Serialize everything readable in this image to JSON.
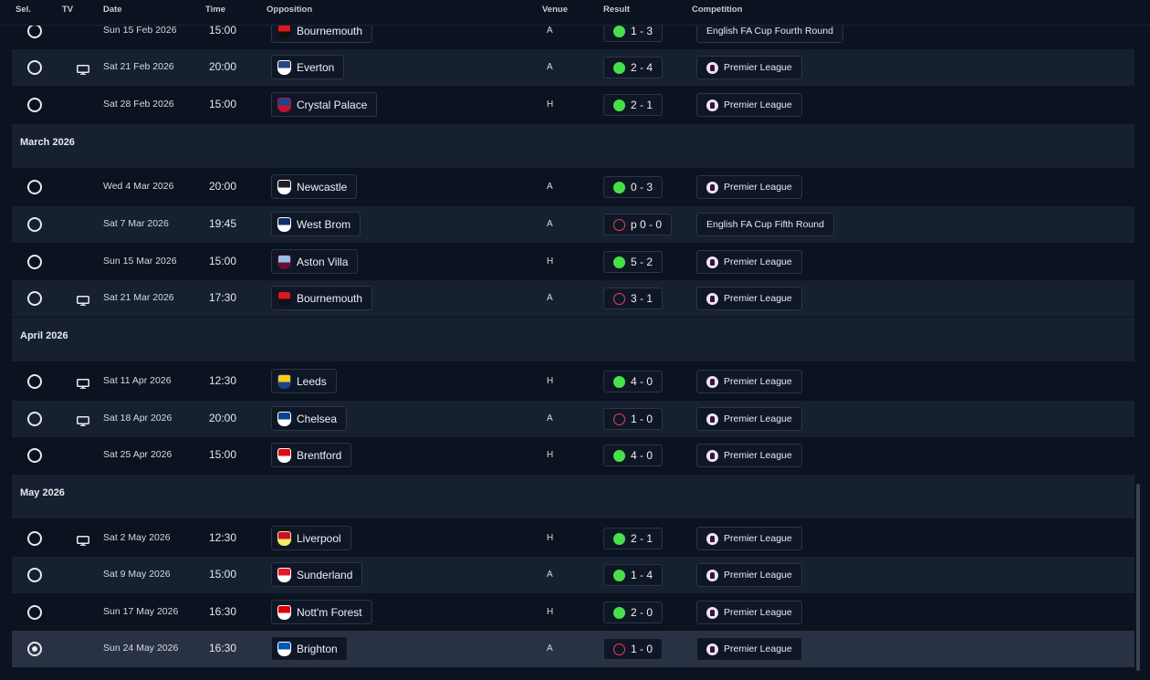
{
  "header": {
    "sel": "Sel.",
    "tv": "TV",
    "date": "Date",
    "time": "Time",
    "opposition": "Opposition",
    "venue": "Venue",
    "result": "Result",
    "competition": "Competition"
  },
  "colors": {
    "win": "#48e04a",
    "loss": "#e64552",
    "background": "#0b1220",
    "row_alt": "#162031",
    "row_selected": "#293244"
  },
  "months": [
    {
      "label": "March 2026"
    },
    {
      "label": "April 2026"
    },
    {
      "label": "May 2026"
    }
  ],
  "fixtures": [
    {
      "date": "Sun 15 Feb 2026",
      "time": "15:00",
      "opponent": "Bournemouth",
      "crest_icon": "bournemouth-crest-icon",
      "venue": "A",
      "outcome": "win",
      "score": "1 - 3",
      "competition": "English FA Cup Fourth Round",
      "pl": false,
      "tv": false,
      "selected": false
    },
    {
      "date": "Sat 21 Feb 2026",
      "time": "20:00",
      "opponent": "Everton",
      "crest_icon": "everton-crest-icon",
      "venue": "A",
      "outcome": "win",
      "score": "2 - 4",
      "competition": "Premier League",
      "pl": true,
      "tv": true,
      "selected": false
    },
    {
      "date": "Sat 28 Feb 2026",
      "time": "15:00",
      "opponent": "Crystal Palace",
      "crest_icon": "crystal-palace-crest-icon",
      "venue": "H",
      "outcome": "win",
      "score": "2 - 1",
      "competition": "Premier League",
      "pl": true,
      "tv": false,
      "selected": false
    },
    {
      "date": "Wed 4 Mar 2026",
      "time": "20:00",
      "opponent": "Newcastle",
      "crest_icon": "newcastle-crest-icon",
      "venue": "A",
      "outcome": "win",
      "score": "0 - 3",
      "competition": "Premier League",
      "pl": true,
      "tv": false,
      "selected": false
    },
    {
      "date": "Sat 7 Mar 2026",
      "time": "19:45",
      "opponent": "West Brom",
      "crest_icon": "west-brom-crest-icon",
      "venue": "A",
      "outcome": "loss",
      "score": "p 0 - 0",
      "competition": "English FA Cup Fifth Round",
      "pl": false,
      "tv": false,
      "selected": false
    },
    {
      "date": "Sun 15 Mar 2026",
      "time": "15:00",
      "opponent": "Aston Villa",
      "crest_icon": "aston-villa-crest-icon",
      "venue": "H",
      "outcome": "win",
      "score": "5 - 2",
      "competition": "Premier League",
      "pl": true,
      "tv": false,
      "selected": false
    },
    {
      "date": "Sat 21 Mar 2026",
      "time": "17:30",
      "opponent": "Bournemouth",
      "crest_icon": "bournemouth-crest-icon",
      "venue": "A",
      "outcome": "loss",
      "score": "3 - 1",
      "competition": "Premier League",
      "pl": true,
      "tv": true,
      "selected": false
    },
    {
      "date": "Sat 11 Apr 2026",
      "time": "12:30",
      "opponent": "Leeds",
      "crest_icon": "leeds-crest-icon",
      "venue": "H",
      "outcome": "win",
      "score": "4 - 0",
      "competition": "Premier League",
      "pl": true,
      "tv": true,
      "selected": false
    },
    {
      "date": "Sat 18 Apr 2026",
      "time": "20:00",
      "opponent": "Chelsea",
      "crest_icon": "chelsea-crest-icon",
      "venue": "A",
      "outcome": "loss",
      "score": "1 - 0",
      "competition": "Premier League",
      "pl": true,
      "tv": true,
      "selected": false
    },
    {
      "date": "Sat 25 Apr 2026",
      "time": "15:00",
      "opponent": "Brentford",
      "crest_icon": "brentford-crest-icon",
      "venue": "H",
      "outcome": "win",
      "score": "4 - 0",
      "competition": "Premier League",
      "pl": true,
      "tv": false,
      "selected": false
    },
    {
      "date": "Sat 2 May 2026",
      "time": "12:30",
      "opponent": "Liverpool",
      "crest_icon": "liverpool-crest-icon",
      "venue": "H",
      "outcome": "win",
      "score": "2 - 1",
      "competition": "Premier League",
      "pl": true,
      "tv": true,
      "selected": false
    },
    {
      "date": "Sat 9 May 2026",
      "time": "15:00",
      "opponent": "Sunderland",
      "crest_icon": "sunderland-crest-icon",
      "venue": "A",
      "outcome": "win",
      "score": "1 - 4",
      "competition": "Premier League",
      "pl": true,
      "tv": false,
      "selected": false
    },
    {
      "date": "Sun 17 May 2026",
      "time": "16:30",
      "opponent": "Nott'm Forest",
      "crest_icon": "nottm-forest-crest-icon",
      "venue": "H",
      "outcome": "win",
      "score": "2 - 0",
      "competition": "Premier League",
      "pl": true,
      "tv": false,
      "selected": false
    },
    {
      "date": "Sun 24 May 2026",
      "time": "16:30",
      "opponent": "Brighton",
      "crest_icon": "brighton-crest-icon",
      "venue": "A",
      "outcome": "loss",
      "score": "1 - 0",
      "competition": "Premier League",
      "pl": true,
      "tv": false,
      "selected": true
    }
  ]
}
